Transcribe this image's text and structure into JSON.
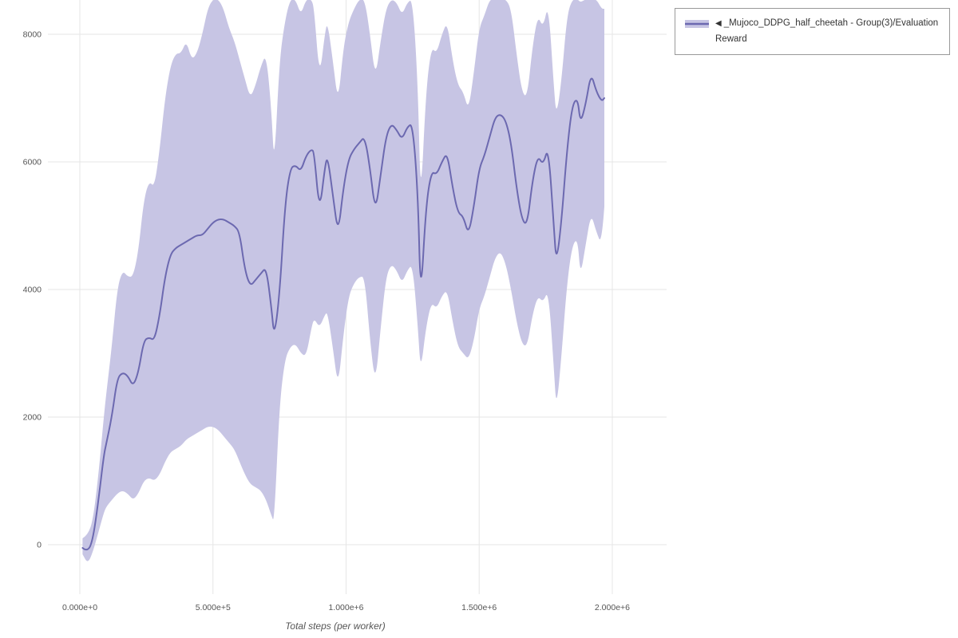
{
  "page": {
    "background": "#ffffff"
  },
  "legend": {
    "collapse_icon": "◀",
    "label": "_Mujoco_DDPG_half_cheetah - Group(3)/Evaluation Reward"
  },
  "chart_data": {
    "type": "line",
    "title": "",
    "xlabel": "Total steps (per worker)",
    "ylabel": "",
    "grid": true,
    "grid_color": "#e6e6e6",
    "tick_color": "#555555",
    "legend_position": "top-right",
    "xlim": [
      -120000,
      2204000
    ],
    "ylim": [
      -775,
      8537
    ],
    "x_ticks": {
      "values": [
        0,
        500000,
        1000000,
        1500000,
        2000000
      ],
      "labels": [
        "0.000e+0",
        "5.000e+5",
        "1.000e+6",
        "1.500e+6",
        "2.000e+6"
      ]
    },
    "y_ticks": {
      "values": [
        0,
        2000,
        4000,
        6000,
        8000
      ],
      "labels": [
        "0",
        "2000",
        "4000",
        "6000",
        "8000"
      ]
    },
    "series": [
      {
        "name": "_Mujoco_DDPG_half_cheetah - Group(3)/Evaluation Reward",
        "line_color": "#6c69b0",
        "band_color": "#c7c5e4",
        "x": [
          10000,
          30000,
          50000,
          70000,
          90000,
          100000,
          120000,
          140000,
          160000,
          180000,
          200000,
          220000,
          240000,
          260000,
          280000,
          300000,
          320000,
          340000,
          360000,
          380000,
          400000,
          420000,
          440000,
          460000,
          480000,
          500000,
          520000,
          540000,
          560000,
          580000,
          600000,
          620000,
          640000,
          660000,
          680000,
          700000,
          720000,
          730000,
          750000,
          770000,
          790000,
          810000,
          830000,
          850000,
          870000,
          880000,
          900000,
          920000,
          930000,
          950000,
          970000,
          990000,
          1010000,
          1030000,
          1050000,
          1070000,
          1090000,
          1110000,
          1130000,
          1150000,
          1170000,
          1190000,
          1210000,
          1230000,
          1250000,
          1270000,
          1280000,
          1300000,
          1320000,
          1340000,
          1360000,
          1380000,
          1400000,
          1420000,
          1440000,
          1460000,
          1480000,
          1500000,
          1520000,
          1540000,
          1560000,
          1580000,
          1600000,
          1620000,
          1640000,
          1660000,
          1680000,
          1700000,
          1720000,
          1740000,
          1760000,
          1780000,
          1790000,
          1810000,
          1830000,
          1850000,
          1870000,
          1880000,
          1900000,
          1920000,
          1940000,
          1960000,
          1970000
        ],
        "mean": [
          -50,
          -120,
          100,
          700,
          1400,
          1600,
          2000,
          2600,
          2700,
          2650,
          2480,
          2700,
          3200,
          3250,
          3200,
          3600,
          4200,
          4550,
          4650,
          4700,
          4750,
          4800,
          4850,
          4850,
          4950,
          5050,
          5100,
          5100,
          5050,
          5000,
          4900,
          4300,
          4050,
          4150,
          4250,
          4350,
          3700,
          3250,
          3900,
          5300,
          5900,
          5950,
          5850,
          6100,
          6200,
          6150,
          5200,
          5900,
          6100,
          5500,
          4850,
          5600,
          6050,
          6200,
          6300,
          6400,
          5900,
          5200,
          5800,
          6400,
          6600,
          6500,
          6350,
          6550,
          6600,
          5500,
          3800,
          5300,
          5850,
          5800,
          6000,
          6150,
          5600,
          5200,
          5150,
          4850,
          5300,
          5900,
          6100,
          6400,
          6700,
          6750,
          6650,
          6300,
          5600,
          5100,
          5000,
          5700,
          6100,
          5950,
          6250,
          5000,
          4400,
          5100,
          6200,
          6900,
          7000,
          6600,
          6900,
          7400,
          7100,
          6950,
          7000
        ],
        "lo": [
          -150,
          -300,
          -100,
          200,
          500,
          600,
          700,
          800,
          850,
          800,
          700,
          800,
          1000,
          1050,
          1000,
          1100,
          1300,
          1450,
          1500,
          1550,
          1650,
          1700,
          1750,
          1800,
          1850,
          1850,
          1800,
          1700,
          1600,
          1500,
          1300,
          1100,
          950,
          900,
          850,
          700,
          450,
          350,
          2200,
          2900,
          3100,
          3150,
          3000,
          2950,
          3400,
          3550,
          3400,
          3600,
          3650,
          3100,
          2450,
          3300,
          3900,
          4100,
          4200,
          4200,
          3200,
          2500,
          3400,
          4200,
          4400,
          4300,
          4100,
          4300,
          4400,
          3400,
          2700,
          3400,
          3800,
          3700,
          3900,
          4000,
          3500,
          3100,
          3000,
          2900,
          3200,
          3700,
          3900,
          4200,
          4500,
          4600,
          4400,
          4000,
          3500,
          3150,
          3100,
          3600,
          3900,
          3800,
          4000,
          2800,
          2100,
          3000,
          4100,
          4700,
          4800,
          4200,
          4700,
          5200,
          4900,
          4700,
          5300
        ],
        "hi": [
          100,
          150,
          400,
          1100,
          2000,
          2400,
          3100,
          4000,
          4300,
          4200,
          4200,
          4600,
          5400,
          5700,
          5600,
          6200,
          7000,
          7500,
          7700,
          7700,
          7900,
          7600,
          7700,
          8000,
          8400,
          8550,
          8550,
          8400,
          8100,
          7900,
          7600,
          7300,
          7000,
          7200,
          7500,
          7700,
          6800,
          5900,
          7600,
          8200,
          8550,
          8550,
          8300,
          8550,
          8550,
          8400,
          7300,
          8000,
          8200,
          7600,
          6900,
          7800,
          8200,
          8400,
          8550,
          8550,
          8000,
          7300,
          7900,
          8400,
          8550,
          8500,
          8300,
          8500,
          8550,
          7200,
          5300,
          7100,
          7800,
          7700,
          8000,
          8200,
          7600,
          7200,
          7100,
          6800,
          7400,
          8100,
          8300,
          8550,
          8550,
          8550,
          8550,
          8400,
          7700,
          7100,
          7000,
          7800,
          8300,
          8100,
          8500,
          7200,
          6700,
          7300,
          8300,
          8550,
          8550,
          8500,
          8550,
          8550,
          8550,
          8400,
          8400
        ]
      }
    ]
  }
}
